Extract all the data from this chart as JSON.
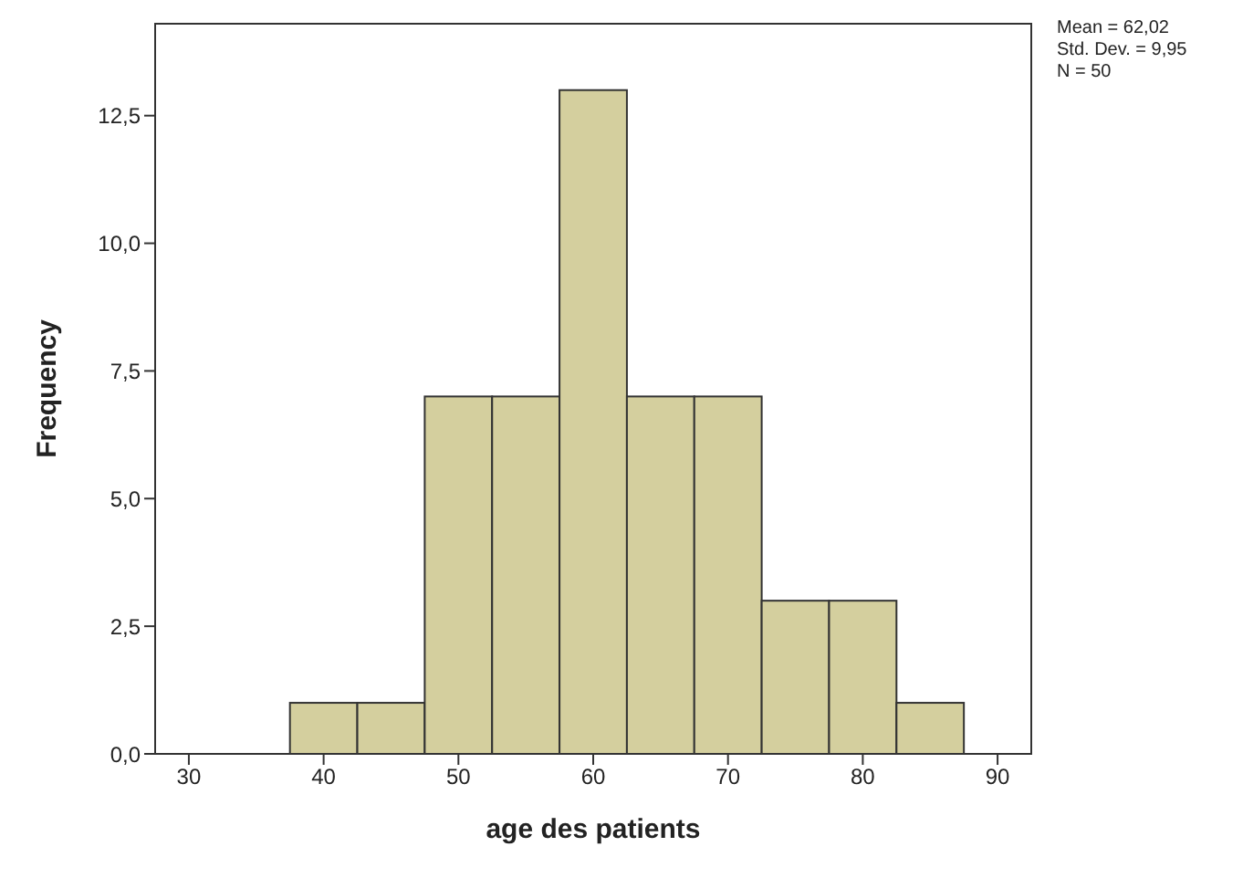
{
  "chart_data": {
    "type": "histogram",
    "xlabel": "age des patients",
    "ylabel": "Frequency",
    "bins": [
      37.5,
      42.5,
      47.5,
      52.5,
      57.5,
      62.5,
      67.5,
      72.5,
      77.5,
      82.5,
      87.5
    ],
    "values": [
      1,
      1,
      7,
      7,
      13,
      7,
      7,
      3,
      3,
      1
    ],
    "color": "#d4cf9e",
    "xlim": [
      27.5,
      92.5
    ],
    "xticks": [
      30,
      40,
      50,
      60,
      70,
      80,
      90
    ],
    "ylim": [
      0,
      14.3
    ],
    "yticks": [
      {
        "value": 0,
        "label": "0,0"
      },
      {
        "value": 2.5,
        "label": "2,5"
      },
      {
        "value": 5,
        "label": "5,0"
      },
      {
        "value": 7.5,
        "label": "7,5"
      },
      {
        "value": 10,
        "label": "10,0"
      },
      {
        "value": 12.5,
        "label": "12,5"
      }
    ],
    "annotations": [
      "Mean = 62,02",
      "Std. Dev. = 9,95",
      "N = 50"
    ],
    "grid": false,
    "legend": false
  }
}
